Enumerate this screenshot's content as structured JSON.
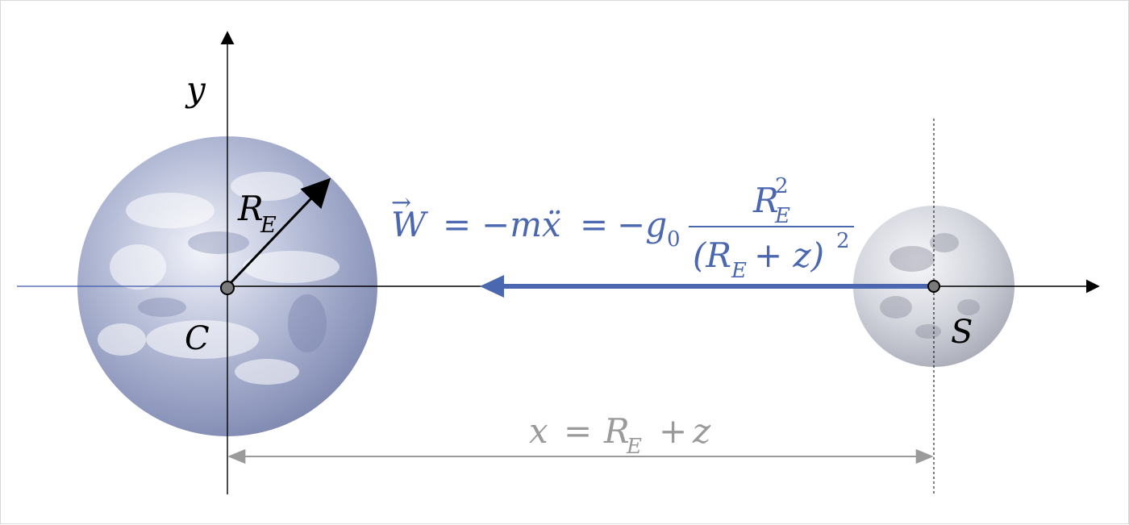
{
  "diagram": {
    "labels": {
      "y_axis": "y",
      "center": "C",
      "satellite": "S",
      "radius": {
        "main": "R",
        "sub": "E"
      },
      "distance": {
        "lhs": "x",
        "equals": "=",
        "r_main": "R",
        "r_sub": "E",
        "plus": "+",
        "z": "z"
      },
      "force": {
        "vector_symbol": "W",
        "arrow_mark": "→",
        "eq1": "=",
        "mid": "−mẍ",
        "eq2": "=",
        "g": "−g",
        "g_sub": "0",
        "num_main": "R",
        "num_sub": "E",
        "num_sup": "2",
        "den_open": "(R",
        "den_sub": "E",
        "den_rest": "+ z)",
        "den_sup": "2"
      }
    },
    "colors": {
      "axis": "#000000",
      "force": "#4a67b0",
      "distance": "#9a9a9a",
      "earth_base": "#8a93b5",
      "earth_light": "#eef0f7",
      "moon_base": "#b9bbc6",
      "moon_light": "#f2f2f5"
    }
  }
}
